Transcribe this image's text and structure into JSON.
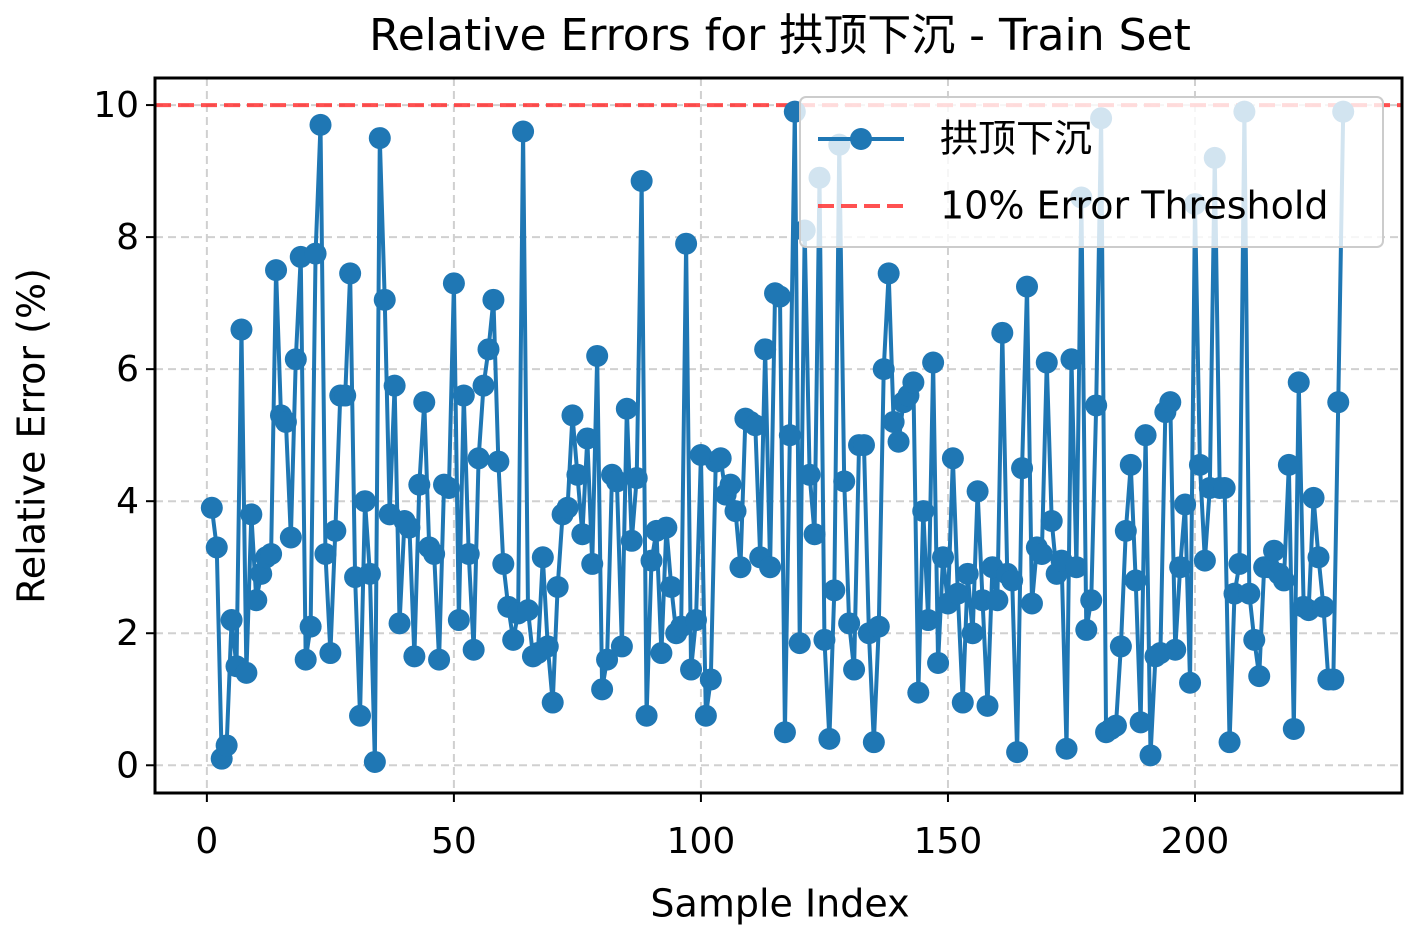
{
  "chart_data": {
    "type": "line",
    "title": "Relative Errors for 拱顶下沉 - Train Set",
    "x_label": "Sample Index",
    "y_label": "Relative Error (%)",
    "x": [
      1,
      2,
      3,
      4,
      5,
      6,
      7,
      8,
      9,
      10,
      11,
      12,
      13,
      14,
      15,
      16,
      17,
      18,
      19,
      20,
      21,
      22,
      23,
      24,
      25,
      26,
      27,
      28,
      29,
      30,
      31,
      32,
      33,
      34,
      35,
      36,
      37,
      38,
      39,
      40,
      41,
      42,
      43,
      44,
      45,
      46,
      47,
      48,
      49,
      50,
      51,
      52,
      53,
      54,
      55,
      56,
      57,
      58,
      59,
      60,
      61,
      62,
      63,
      64,
      65,
      66,
      67,
      68,
      69,
      70,
      71,
      72,
      73,
      74,
      75,
      76,
      77,
      78,
      79,
      80,
      81,
      82,
      83,
      84,
      85,
      86,
      87,
      88,
      89,
      90,
      91,
      92,
      93,
      94,
      95,
      96,
      97,
      98,
      99,
      100,
      101,
      102,
      103,
      104,
      105,
      106,
      107,
      108,
      109,
      110,
      111,
      112,
      113,
      114,
      115,
      116,
      117,
      118,
      119,
      120,
      121,
      122,
      123,
      124,
      125,
      126,
      127,
      128,
      129,
      130,
      131,
      132,
      133,
      134,
      135,
      136,
      137,
      138,
      139,
      140,
      141,
      142,
      143,
      144,
      145,
      146,
      147,
      148,
      149,
      150,
      151,
      152,
      153,
      154,
      155,
      156,
      157,
      158,
      159,
      160,
      161,
      162,
      163,
      164,
      165,
      166,
      167,
      168,
      169,
      170,
      171,
      172,
      173,
      174,
      175,
      176,
      177,
      178,
      179,
      180,
      181,
      182,
      183,
      184,
      185,
      186,
      187,
      188,
      189,
      190,
      191,
      192,
      193,
      194,
      195,
      196,
      197,
      198,
      199,
      200,
      201,
      202,
      203,
      204,
      205,
      206,
      207,
      208,
      209,
      210,
      211,
      212,
      213,
      214,
      215,
      216,
      217,
      218,
      219,
      220,
      221,
      222,
      223,
      224,
      225,
      226,
      227,
      228,
      229,
      230
    ],
    "series": [
      {
        "name": "拱顶下沉",
        "color": "#1f77b4",
        "values": [
          3.9,
          3.3,
          0.1,
          0.3,
          2.2,
          1.5,
          6.6,
          1.4,
          3.8,
          2.5,
          2.9,
          3.15,
          3.2,
          7.5,
          5.3,
          5.2,
          3.45,
          6.15,
          7.7,
          1.6,
          2.1,
          7.75,
          9.7,
          3.2,
          1.7,
          3.55,
          5.6,
          5.6,
          7.45,
          2.85,
          0.75,
          4.0,
          2.9,
          0.05,
          9.5,
          7.05,
          3.8,
          5.75,
          2.15,
          3.7,
          3.6,
          1.65,
          4.25,
          5.5,
          3.3,
          3.2,
          1.6,
          4.25,
          4.2,
          7.3,
          2.2,
          5.6,
          3.2,
          1.75,
          4.65,
          5.75,
          6.3,
          7.05,
          4.6,
          3.05,
          2.4,
          1.9,
          2.3,
          9.6,
          2.35,
          1.65,
          1.7,
          3.15,
          1.8,
          0.95,
          2.7,
          3.8,
          3.9,
          5.3,
          4.4,
          3.5,
          4.95,
          3.05,
          6.2,
          1.15,
          1.6,
          4.4,
          4.3,
          1.8,
          5.4,
          3.4,
          4.35,
          8.85,
          0.75,
          3.1,
          3.55,
          1.7,
          3.6,
          2.7,
          2.0,
          2.1,
          7.9,
          1.45,
          2.2,
          4.7,
          0.75,
          1.3,
          4.6,
          4.65,
          4.1,
          4.25,
          3.85,
          3.0,
          5.25,
          5.2,
          5.15,
          3.15,
          6.3,
          3.0,
          7.15,
          7.1,
          0.5,
          5.0,
          9.9,
          1.85,
          8.1,
          4.4,
          3.5,
          8.9,
          1.9,
          0.4,
          2.65,
          9.4,
          4.3,
          2.15,
          1.45,
          4.85,
          4.85,
          2.0,
          0.35,
          2.1,
          6.0,
          7.45,
          5.2,
          4.9,
          5.5,
          5.6,
          5.8,
          1.1,
          3.85,
          2.2,
          6.1,
          1.55,
          3.15,
          2.45,
          4.65,
          2.6,
          0.95,
          2.9,
          2.0,
          4.15,
          2.5,
          0.9,
          3.0,
          2.5,
          6.55,
          2.9,
          2.8,
          0.2,
          4.5,
          7.25,
          2.45,
          3.3,
          3.2,
          6.1,
          3.7,
          2.9,
          3.1,
          0.25,
          6.15,
          3.0,
          8.6,
          2.05,
          2.5,
          5.45,
          9.8,
          0.5,
          0.55,
          0.6,
          1.8,
          3.55,
          4.55,
          2.8,
          0.65,
          5.0,
          0.15,
          1.65,
          1.7,
          5.35,
          5.5,
          1.75,
          3.0,
          3.95,
          1.25,
          8.5,
          4.55,
          3.1,
          4.2,
          9.2,
          4.2,
          4.2,
          0.35,
          2.6,
          3.05,
          9.9,
          2.6,
          1.9,
          1.35,
          3.0,
          3.0,
          3.25,
          2.9,
          2.8,
          4.55,
          0.55,
          5.8,
          2.4,
          2.35,
          4.05,
          3.15,
          2.4,
          1.3,
          1.3,
          5.5,
          9.9
        ]
      }
    ],
    "threshold": {
      "name": "10% Error Threshold",
      "value": 10,
      "color": "#ff3333"
    },
    "xlim": [
      -10.5,
      241.9
    ],
    "ylim": [
      -0.42,
      10.41
    ],
    "xticks": [
      0,
      50,
      100,
      150,
      200
    ],
    "yticks": [
      0,
      2,
      4,
      6,
      8,
      10
    ],
    "grid": true,
    "legend": "upper right"
  }
}
